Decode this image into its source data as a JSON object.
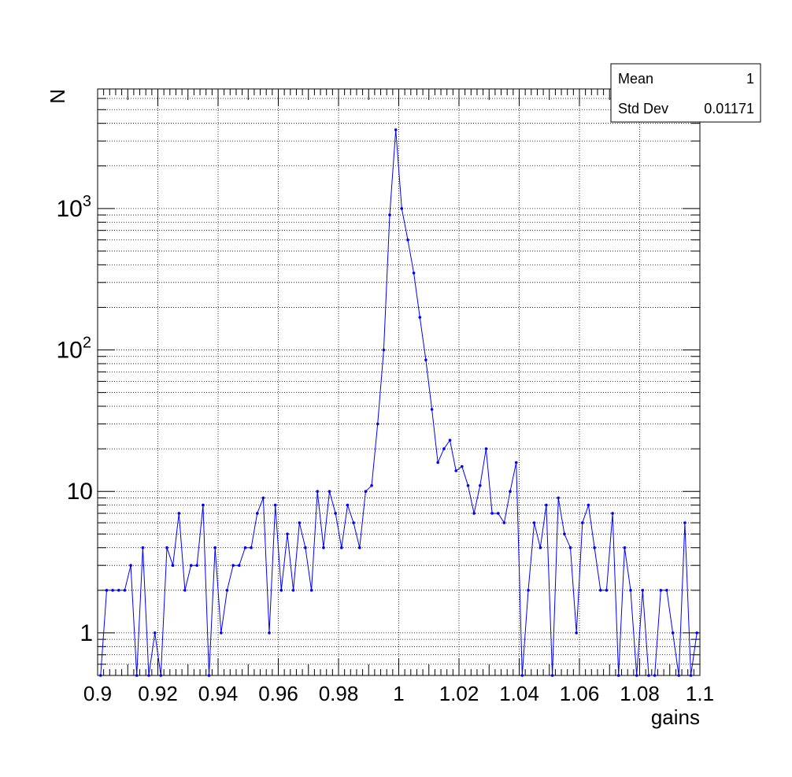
{
  "chart_data": {
    "type": "line",
    "xlabel": "gains",
    "ylabel": "N",
    "xlim": [
      0.9,
      1.1
    ],
    "ylim": [
      0.5,
      7000
    ],
    "yscale": "log",
    "grid": true,
    "series_color": "#0000ff",
    "x_ticks": [
      {
        "value": 0.9,
        "label": "0.9"
      },
      {
        "value": 0.92,
        "label": "0.92"
      },
      {
        "value": 0.94,
        "label": "0.94"
      },
      {
        "value": 0.96,
        "label": "0.96"
      },
      {
        "value": 0.98,
        "label": "0.98"
      },
      {
        "value": 1.0,
        "label": "1"
      },
      {
        "value": 1.02,
        "label": "1.02"
      },
      {
        "value": 1.04,
        "label": "1.04"
      },
      {
        "value": 1.06,
        "label": "1.06"
      },
      {
        "value": 1.08,
        "label": "1.08"
      },
      {
        "value": 1.1,
        "label": "1.1"
      }
    ],
    "y_ticks": [
      {
        "value": 1,
        "label": "1"
      },
      {
        "value": 10,
        "label": "10"
      },
      {
        "value": 100,
        "base": "10",
        "exp": "2"
      },
      {
        "value": 1000,
        "base": "10",
        "exp": "3"
      }
    ],
    "stats": {
      "mean_label": "Mean",
      "mean_value": "1",
      "std_label": "Std Dev",
      "std_value": "0.01171"
    },
    "series": [
      {
        "x": [
          0.901,
          0.903,
          0.905,
          0.907,
          0.909,
          0.911,
          0.913,
          0.915,
          0.917,
          0.919,
          0.921,
          0.923,
          0.925,
          0.927,
          0.929,
          0.931,
          0.933,
          0.935,
          0.937,
          0.939,
          0.941,
          0.943,
          0.945,
          0.947,
          0.949,
          0.951,
          0.953,
          0.955,
          0.957,
          0.959,
          0.961,
          0.963,
          0.965,
          0.967,
          0.969,
          0.971,
          0.973,
          0.975,
          0.977,
          0.979,
          0.981,
          0.983,
          0.985,
          0.987,
          0.989,
          0.991,
          0.993,
          0.995,
          0.997,
          0.999,
          1.001,
          1.003,
          1.005,
          1.007,
          1.009,
          1.011,
          1.013,
          1.015,
          1.017,
          1.019,
          1.021,
          1.023,
          1.025,
          1.027,
          1.029,
          1.031,
          1.033,
          1.035,
          1.037,
          1.039,
          1.041,
          1.043,
          1.045,
          1.047,
          1.049,
          1.051,
          1.053,
          1.055,
          1.057,
          1.059,
          1.061,
          1.063,
          1.065,
          1.067,
          1.069,
          1.071,
          1.073,
          1.075,
          1.077,
          1.079,
          1.081,
          1.083,
          1.085,
          1.087,
          1.089,
          1.091,
          1.093,
          1.095,
          1.097,
          1.099
        ],
        "y": [
          0.5,
          2,
          2,
          2,
          2,
          3,
          0.5,
          4,
          0.5,
          1,
          0.5,
          4,
          3,
          7,
          2,
          3,
          3,
          8,
          0.5,
          4,
          1,
          2,
          3,
          3,
          4,
          4,
          7,
          9,
          1,
          8,
          2,
          5,
          2,
          6,
          4,
          2,
          10,
          4,
          10,
          7,
          4,
          8,
          6,
          4,
          10,
          11,
          30,
          100,
          900,
          3600,
          1000,
          600,
          350,
          170,
          85,
          38,
          16,
          20,
          23,
          14,
          15,
          11,
          7,
          11,
          20,
          7,
          7,
          6,
          10,
          16,
          0.5,
          2,
          6,
          4,
          8,
          0.5,
          9,
          5,
          4,
          1,
          6,
          8,
          4,
          2,
          2,
          7,
          0.5,
          4,
          2,
          0.5,
          2,
          0.5,
          0.5,
          2,
          2,
          1,
          0.5,
          6,
          0.5,
          1
        ]
      }
    ]
  }
}
